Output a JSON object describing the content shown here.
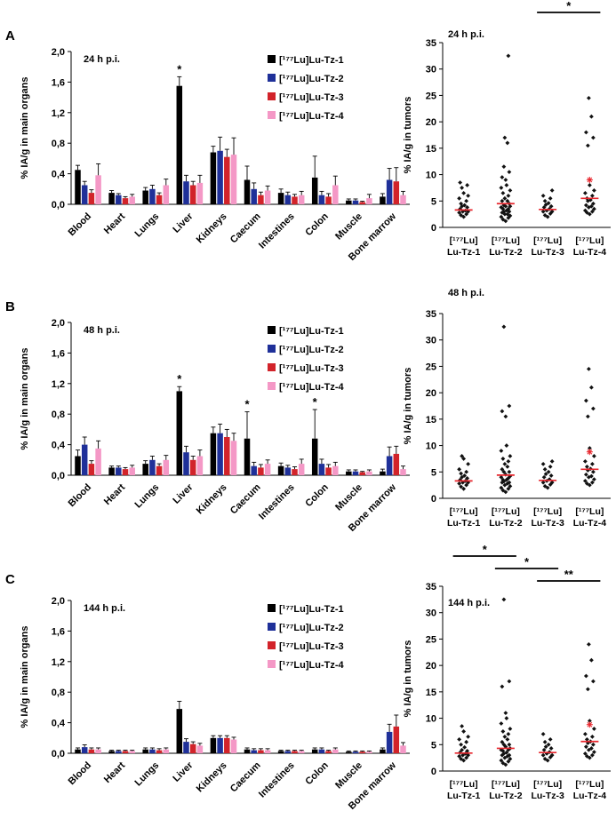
{
  "panel_labels": [
    "A",
    "B",
    "C"
  ],
  "colors": {
    "tz1": "#000000",
    "tz2": "#1f3099",
    "tz3": "#d2232a",
    "tz4": "#f498c6",
    "mean_line": "#e8262d",
    "axis": "#000000"
  },
  "chart_data": [
    {
      "panel": "A",
      "type": "bar",
      "title": "24 h p.i.",
      "ylabel": "% IA/g in main organs",
      "ylim": [
        0,
        2.0
      ],
      "yticks": [
        "0,0",
        "0,4",
        "0,8",
        "1,2",
        "1,6",
        "2,0"
      ],
      "categories": [
        "Blood",
        "Heart",
        "Lungs",
        "Liver",
        "Kidneys",
        "Caecum",
        "Intestines",
        "Colon",
        "Muscle",
        "Bone marrow"
      ],
      "legend_position": "top-right",
      "series": [
        {
          "name": "[¹⁷⁷Lu]Lu-Tz-1",
          "color": "#000000",
          "values": [
            0.45,
            0.15,
            0.18,
            1.55,
            0.68,
            0.32,
            0.15,
            0.35,
            0.05,
            0.1
          ],
          "errors": [
            0.06,
            0.03,
            0.04,
            0.12,
            0.08,
            0.18,
            0.05,
            0.28,
            0.02,
            0.04
          ]
        },
        {
          "name": "[¹⁷⁷Lu]Lu-Tz-2",
          "color": "#1f3099",
          "values": [
            0.25,
            0.12,
            0.2,
            0.3,
            0.7,
            0.2,
            0.12,
            0.12,
            0.05,
            0.32
          ],
          "errors": [
            0.05,
            0.02,
            0.05,
            0.08,
            0.18,
            0.08,
            0.04,
            0.05,
            0.02,
            0.15
          ]
        },
        {
          "name": "[¹⁷⁷Lu]Lu-Tz-3",
          "color": "#d2232a",
          "values": [
            0.15,
            0.08,
            0.12,
            0.25,
            0.62,
            0.12,
            0.1,
            0.1,
            0.03,
            0.3
          ],
          "errors": [
            0.04,
            0.02,
            0.03,
            0.05,
            0.1,
            0.04,
            0.03,
            0.04,
            0.01,
            0.18
          ]
        },
        {
          "name": "[¹⁷⁷Lu]Lu-Tz-4",
          "color": "#f498c6",
          "values": [
            0.38,
            0.1,
            0.25,
            0.28,
            0.65,
            0.18,
            0.12,
            0.25,
            0.08,
            0.12
          ],
          "errors": [
            0.15,
            0.03,
            0.08,
            0.1,
            0.22,
            0.06,
            0.05,
            0.12,
            0.05,
            0.05
          ]
        }
      ],
      "annotations": [
        {
          "category": "Liver",
          "series": 0,
          "text": "*"
        }
      ]
    },
    {
      "panel": "A",
      "type": "scatter",
      "title": "24 h p.i.",
      "ylabel": "% IA/g in tumors",
      "ylim": [
        0,
        35
      ],
      "yticks": [
        0,
        5,
        10,
        15,
        20,
        25,
        30,
        35
      ],
      "groups": [
        {
          "label": [
            "[¹⁷⁷Lu]",
            "Lu-Tz-1"
          ],
          "points": [
            2,
            2.3,
            2.5,
            2.8,
            3,
            3,
            3.2,
            3.5,
            3.8,
            4,
            4.2,
            4.5,
            5,
            5.5,
            6,
            6.5,
            7.5,
            8,
            8.5
          ],
          "mean": 3.3
        },
        {
          "label": [
            "[¹⁷⁷Lu]",
            "Lu-Tz-2"
          ],
          "points": [
            1.2,
            1.5,
            1.8,
            2,
            2.2,
            2.5,
            2.5,
            2.8,
            3,
            3,
            3.2,
            3.5,
            3.5,
            3.8,
            4,
            4,
            4.2,
            4.5,
            5,
            5,
            5.5,
            6,
            6.5,
            7,
            7.5,
            8,
            9,
            9.5,
            10.5,
            11.5,
            16,
            17,
            32.5
          ],
          "mean": 4.5
        },
        {
          "label": [
            "[¹⁷⁷Lu]",
            "Lu-Tz-3"
          ],
          "points": [
            2,
            2.3,
            2.6,
            3,
            3,
            3.2,
            3.5,
            3.8,
            4,
            4.3,
            4.6,
            5,
            5.5,
            6,
            7
          ],
          "mean": 3.4
        },
        {
          "label": [
            "[¹⁷⁷Lu]",
            "Lu-Tz-4"
          ],
          "points": [
            2.5,
            2.8,
            3,
            3.2,
            3.5,
            3.8,
            4,
            4.2,
            4.5,
            5,
            5.2,
            5.5,
            6,
            6.5,
            7,
            8,
            15.5,
            17,
            18,
            21,
            24.5
          ],
          "mean": 5.5,
          "red_marker": 9
        }
      ],
      "sig_bars": [
        {
          "from": 2,
          "to": 3,
          "text": "*",
          "row": 0
        }
      ]
    },
    {
      "panel": "B",
      "type": "bar",
      "title": "48 h p.i.",
      "ylabel": "% IA/g in main organs",
      "ylim": [
        0,
        2.0
      ],
      "yticks": [
        "0,0",
        "0,4",
        "0,8",
        "1,2",
        "1,6",
        "2,0"
      ],
      "categories": [
        "Blood",
        "Heart",
        "Lungs",
        "Liver",
        "Kidneys",
        "Caecum",
        "Intestines",
        "Colon",
        "Muscle",
        "Bone marrow"
      ],
      "legend_position": "top-right",
      "series": [
        {
          "name": "[¹⁷⁷Lu]Lu-Tz-1",
          "color": "#000000",
          "values": [
            0.25,
            0.1,
            0.15,
            1.1,
            0.55,
            0.48,
            0.12,
            0.48,
            0.05,
            0.05
          ],
          "errors": [
            0.08,
            0.02,
            0.04,
            0.06,
            0.08,
            0.35,
            0.04,
            0.38,
            0.02,
            0.03
          ]
        },
        {
          "name": "[¹⁷⁷Lu]Lu-Tz-2",
          "color": "#1f3099",
          "values": [
            0.4,
            0.1,
            0.2,
            0.3,
            0.55,
            0.12,
            0.1,
            0.15,
            0.05,
            0.25
          ],
          "errors": [
            0.1,
            0.02,
            0.05,
            0.08,
            0.12,
            0.05,
            0.03,
            0.06,
            0.02,
            0.12
          ]
        },
        {
          "name": "[¹⁷⁷Lu]Lu-Tz-3",
          "color": "#d2232a",
          "values": [
            0.15,
            0.08,
            0.12,
            0.2,
            0.5,
            0.1,
            0.08,
            0.1,
            0.04,
            0.28
          ],
          "errors": [
            0.04,
            0.02,
            0.03,
            0.05,
            0.1,
            0.04,
            0.03,
            0.04,
            0.01,
            0.1
          ]
        },
        {
          "name": "[¹⁷⁷Lu]Lu-Tz-4",
          "color": "#f498c6",
          "values": [
            0.35,
            0.1,
            0.2,
            0.25,
            0.45,
            0.15,
            0.15,
            0.12,
            0.05,
            0.08
          ],
          "errors": [
            0.1,
            0.03,
            0.06,
            0.08,
            0.1,
            0.05,
            0.06,
            0.05,
            0.02,
            0.04
          ]
        }
      ],
      "annotations": [
        {
          "category": "Liver",
          "series": 0,
          "text": "*"
        },
        {
          "category": "Caecum",
          "series": 0,
          "text": "*"
        },
        {
          "category": "Colon",
          "series": 0,
          "text": "*"
        }
      ]
    },
    {
      "panel": "B",
      "type": "scatter",
      "title": "48 h p.i.",
      "ylabel": "% IA/g in tumors",
      "ylim": [
        0,
        35
      ],
      "yticks": [
        0,
        5,
        10,
        15,
        20,
        25,
        30,
        35
      ],
      "groups": [
        {
          "label": [
            "[¹⁷⁷Lu]",
            "Lu-Tz-1"
          ],
          "points": [
            1.8,
            2.2,
            2.5,
            2.8,
            3,
            3,
            3.3,
            3.5,
            3.8,
            4,
            4.3,
            4.7,
            5,
            5.5,
            6.5,
            7.5,
            8
          ],
          "mean": 3.3
        },
        {
          "label": [
            "[¹⁷⁷Lu]",
            "Lu-Tz-2"
          ],
          "points": [
            1.2,
            1.5,
            1.8,
            2,
            2.3,
            2.5,
            2.8,
            3,
            3,
            3.2,
            3.5,
            3.5,
            3.8,
            4,
            4.2,
            4.5,
            5,
            5,
            5.5,
            6,
            6.5,
            7,
            7.5,
            8,
            9,
            10,
            15.5,
            16.5,
            17.5,
            32.5
          ],
          "mean": 4.4
        },
        {
          "label": [
            "[¹⁷⁷Lu]",
            "Lu-Tz-3"
          ],
          "points": [
            2,
            2.3,
            2.6,
            3,
            3,
            3.3,
            3.6,
            4,
            4.3,
            4.6,
            5,
            5.5,
            6,
            6.5,
            7
          ],
          "mean": 3.4
        },
        {
          "label": [
            "[¹⁷⁷Lu]",
            "Lu-Tz-4"
          ],
          "points": [
            2.5,
            2.8,
            3,
            3.3,
            3.6,
            4,
            4.2,
            4.5,
            5,
            5.3,
            5.6,
            6,
            6.5,
            7,
            8,
            9.5,
            15.5,
            17,
            18.5,
            21,
            24.5
          ],
          "mean": 5.5,
          "red_marker": 8.8
        }
      ],
      "sig_bars": []
    },
    {
      "panel": "C",
      "type": "bar",
      "title": "144 h p.i.",
      "ylabel": "% IA/g in main organs",
      "ylim": [
        0,
        2.0
      ],
      "yticks": [
        "0,0",
        "0,4",
        "0,8",
        "1,2",
        "1,6",
        "2,0"
      ],
      "categories": [
        "Blood",
        "Heart",
        "Lungs",
        "Liver",
        "Kidneys",
        "Caecum",
        "Intestines",
        "Colon",
        "Muscle",
        "Bone marrow"
      ],
      "legend_position": "top-right",
      "series": [
        {
          "name": "[¹⁷⁷Lu]Lu-Tz-1",
          "color": "#000000",
          "values": [
            0.05,
            0.03,
            0.05,
            0.58,
            0.2,
            0.05,
            0.03,
            0.05,
            0.02,
            0.05
          ],
          "errors": [
            0.02,
            0.01,
            0.02,
            0.1,
            0.03,
            0.02,
            0.01,
            0.02,
            0.01,
            0.02
          ]
        },
        {
          "name": "[¹⁷⁷Lu]Lu-Tz-2",
          "color": "#1f3099",
          "values": [
            0.08,
            0.03,
            0.05,
            0.15,
            0.2,
            0.04,
            0.03,
            0.05,
            0.02,
            0.28
          ],
          "errors": [
            0.03,
            0.01,
            0.02,
            0.04,
            0.03,
            0.02,
            0.01,
            0.02,
            0.01,
            0.1
          ]
        },
        {
          "name": "[¹⁷⁷Lu]Lu-Tz-3",
          "color": "#d2232a",
          "values": [
            0.05,
            0.03,
            0.04,
            0.12,
            0.2,
            0.04,
            0.03,
            0.03,
            0.02,
            0.35
          ],
          "errors": [
            0.02,
            0.01,
            0.02,
            0.03,
            0.03,
            0.02,
            0.01,
            0.01,
            0.01,
            0.15
          ]
        },
        {
          "name": "[¹⁷⁷Lu]Lu-Tz-4",
          "color": "#f498c6",
          "values": [
            0.05,
            0.03,
            0.05,
            0.1,
            0.18,
            0.04,
            0.03,
            0.05,
            0.02,
            0.1
          ],
          "errors": [
            0.02,
            0.01,
            0.02,
            0.03,
            0.03,
            0.02,
            0.01,
            0.02,
            0.01,
            0.04
          ]
        }
      ],
      "annotations": []
    },
    {
      "panel": "C",
      "type": "scatter",
      "title": "144 h p.i.",
      "ylabel": "% IA/g in tumors",
      "ylim": [
        0,
        35
      ],
      "yticks": [
        0,
        5,
        10,
        15,
        20,
        25,
        30,
        35
      ],
      "groups": [
        {
          "label": [
            "[¹⁷⁷Lu]",
            "Lu-Tz-1"
          ],
          "points": [
            2,
            2.3,
            2.5,
            2.8,
            3,
            3,
            3.3,
            3.5,
            3.8,
            4,
            4.5,
            5,
            5.5,
            6,
            6.5,
            7.5,
            8.5
          ],
          "mean": 3.4
        },
        {
          "label": [
            "[¹⁷⁷Lu]",
            "Lu-Tz-2"
          ],
          "points": [
            1.2,
            1.5,
            1.8,
            2,
            2.3,
            2.5,
            2.8,
            3,
            3,
            3.3,
            3.5,
            3.8,
            4,
            4,
            4.3,
            4.6,
            5,
            5,
            5.5,
            6,
            6.5,
            7,
            7.5,
            8,
            9,
            10,
            11,
            16,
            17,
            32.5
          ],
          "mean": 4.3
        },
        {
          "label": [
            "[¹⁷⁷Lu]",
            "Lu-Tz-3"
          ],
          "points": [
            2,
            2.3,
            2.6,
            3,
            3,
            3.3,
            3.6,
            4,
            4.3,
            4.6,
            5,
            5.5,
            6,
            7
          ],
          "mean": 3.5
        },
        {
          "label": [
            "[¹⁷⁷Lu]",
            "Lu-Tz-4"
          ],
          "points": [
            2.5,
            2.8,
            3,
            3.3,
            3.6,
            4,
            4.3,
            4.6,
            5,
            5.3,
            5.6,
            6,
            6.5,
            7,
            8,
            9.5,
            15.5,
            17,
            18,
            21,
            24
          ],
          "mean": 5.6,
          "red_marker": 8.8
        }
      ],
      "sig_bars": [
        {
          "from": 0,
          "to": 1,
          "text": "*",
          "row": 0
        },
        {
          "from": 1,
          "to": 2,
          "text": "*",
          "row": 1
        },
        {
          "from": 2,
          "to": 3,
          "text": "**",
          "row": 2
        }
      ]
    }
  ]
}
